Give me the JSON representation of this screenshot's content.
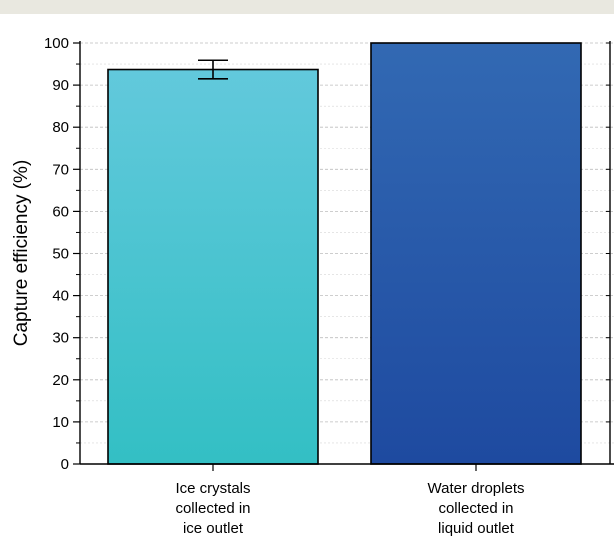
{
  "chart_data": {
    "type": "bar",
    "title": "",
    "xlabel": "",
    "ylabel": "Capture efficiency (%)",
    "ylim": [
      0,
      100
    ],
    "yticks": [
      0,
      10,
      20,
      30,
      40,
      50,
      60,
      70,
      80,
      90,
      100
    ],
    "grid": true,
    "categories": [
      [
        "Ice crystals",
        "collected in",
        "ice outlet"
      ],
      [
        "Water droplets",
        "collected in",
        "liquid outlet"
      ]
    ],
    "values": [
      93.7,
      100
    ],
    "error": [
      2.2,
      null
    ],
    "colors": [
      {
        "top": "#62c9dc",
        "bottom": "#33bfc4"
      },
      {
        "top": "#3269b3",
        "bottom": "#1e4aa0"
      }
    ]
  }
}
